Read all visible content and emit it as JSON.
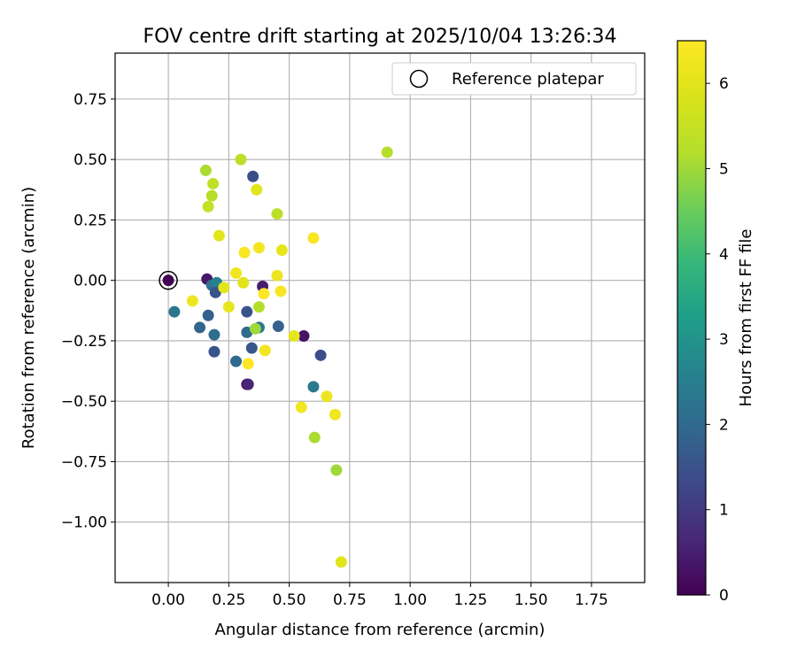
{
  "chart_data": {
    "type": "scatter",
    "title": "FOV centre drift starting at 2025/10/04 13:26:34",
    "xlabel": "Angular distance from reference (arcmin)",
    "ylabel": "Rotation from reference (arcmin)",
    "xlim": [
      -0.22,
      1.97
    ],
    "ylim": [
      -1.25,
      0.94
    ],
    "grid": true,
    "xticks": [
      0.0,
      0.25,
      0.5,
      0.75,
      1.0,
      1.25,
      1.5,
      1.75
    ],
    "xtick_labels": [
      "0.00",
      "0.25",
      "0.50",
      "0.75",
      "1.00",
      "1.25",
      "1.50",
      "1.75"
    ],
    "yticks": [
      0.75,
      0.5,
      0.25,
      0.0,
      -0.25,
      -0.5,
      -0.75,
      -1.0
    ],
    "ytick_labels": [
      "0.75",
      "0.50",
      "0.25",
      "0.00",
      "−0.25",
      "−0.50",
      "−0.75",
      "−1.00"
    ],
    "legend": {
      "label": "Reference platepar",
      "location": "top-right",
      "marker_x": 0.0,
      "marker_y": 0.0
    },
    "colorbar": {
      "label": "Hours from first FF file",
      "min": 0,
      "max": 6.5,
      "ticks": [
        0,
        1,
        2,
        3,
        4,
        5,
        6
      ],
      "tick_labels": [
        "0",
        "1",
        "2",
        "3",
        "4",
        "5",
        "6"
      ],
      "colormap": "viridis"
    },
    "points": [
      {
        "x": 0.0,
        "y": 0.0,
        "h": 0.0
      },
      {
        "x": 0.16,
        "y": 0.005,
        "h": 0.4
      },
      {
        "x": 0.18,
        "y": -0.02,
        "h": 2.2
      },
      {
        "x": 0.2,
        "y": -0.01,
        "h": 2.6
      },
      {
        "x": 0.195,
        "y": -0.05,
        "h": 1.5
      },
      {
        "x": 0.025,
        "y": -0.13,
        "h": 2.3
      },
      {
        "x": 0.165,
        "y": -0.145,
        "h": 1.8
      },
      {
        "x": 0.13,
        "y": -0.195,
        "h": 1.9
      },
      {
        "x": 0.19,
        "y": -0.225,
        "h": 2.1
      },
      {
        "x": 0.19,
        "y": -0.295,
        "h": 1.5
      },
      {
        "x": 0.325,
        "y": -0.13,
        "h": 1.5
      },
      {
        "x": 0.325,
        "y": -0.215,
        "h": 2.0
      },
      {
        "x": 0.375,
        "y": -0.195,
        "h": 2.3
      },
      {
        "x": 0.28,
        "y": -0.335,
        "h": 2.0
      },
      {
        "x": 0.345,
        "y": -0.28,
        "h": 1.6
      },
      {
        "x": 0.325,
        "y": -0.43,
        "h": 0.3
      },
      {
        "x": 0.33,
        "y": -0.43,
        "h": 0.6
      },
      {
        "x": 0.39,
        "y": -0.025,
        "h": 0.5
      },
      {
        "x": 0.455,
        "y": -0.19,
        "h": 1.8
      },
      {
        "x": 0.56,
        "y": -0.23,
        "h": 0.3
      },
      {
        "x": 0.63,
        "y": -0.31,
        "h": 1.4
      },
      {
        "x": 0.6,
        "y": -0.44,
        "h": 2.4
      },
      {
        "x": 0.35,
        "y": 0.43,
        "h": 1.4
      },
      {
        "x": 0.155,
        "y": 0.455,
        "h": 5.1
      },
      {
        "x": 0.3,
        "y": 0.5,
        "h": 5.3
      },
      {
        "x": 0.185,
        "y": 0.4,
        "h": 5.4
      },
      {
        "x": 0.18,
        "y": 0.35,
        "h": 5.2
      },
      {
        "x": 0.165,
        "y": 0.305,
        "h": 5.5
      },
      {
        "x": 0.45,
        "y": 0.275,
        "h": 5.3
      },
      {
        "x": 0.905,
        "y": 0.53,
        "h": 5.2
      },
      {
        "x": 0.375,
        "y": -0.11,
        "h": 5.2
      },
      {
        "x": 0.36,
        "y": -0.2,
        "h": 5.0
      },
      {
        "x": 0.605,
        "y": -0.65,
        "h": 5.1
      },
      {
        "x": 0.695,
        "y": -0.785,
        "h": 5.0
      },
      {
        "x": 0.365,
        "y": 0.375,
        "h": 6.0
      },
      {
        "x": 0.21,
        "y": 0.185,
        "h": 6.0
      },
      {
        "x": 0.375,
        "y": 0.135,
        "h": 6.3
      },
      {
        "x": 0.315,
        "y": 0.115,
        "h": 6.4
      },
      {
        "x": 0.47,
        "y": 0.125,
        "h": 6.1
      },
      {
        "x": 0.6,
        "y": 0.175,
        "h": 6.4
      },
      {
        "x": 0.28,
        "y": 0.03,
        "h": 6.3
      },
      {
        "x": 0.45,
        "y": 0.02,
        "h": 6.2
      },
      {
        "x": 0.31,
        "y": -0.01,
        "h": 6.0
      },
      {
        "x": 0.23,
        "y": -0.03,
        "h": 6.0
      },
      {
        "x": 0.465,
        "y": -0.045,
        "h": 6.4
      },
      {
        "x": 0.395,
        "y": -0.055,
        "h": 6.5
      },
      {
        "x": 0.1,
        "y": -0.085,
        "h": 6.2
      },
      {
        "x": 0.25,
        "y": -0.11,
        "h": 6.1
      },
      {
        "x": 0.52,
        "y": -0.23,
        "h": 6.1
      },
      {
        "x": 0.4,
        "y": -0.29,
        "h": 6.3
      },
      {
        "x": 0.33,
        "y": -0.345,
        "h": 6.5
      },
      {
        "x": 0.655,
        "y": -0.48,
        "h": 6.2
      },
      {
        "x": 0.55,
        "y": -0.525,
        "h": 6.3
      },
      {
        "x": 0.69,
        "y": -0.555,
        "h": 6.3
      },
      {
        "x": 0.715,
        "y": -1.165,
        "h": 6.0
      }
    ]
  }
}
